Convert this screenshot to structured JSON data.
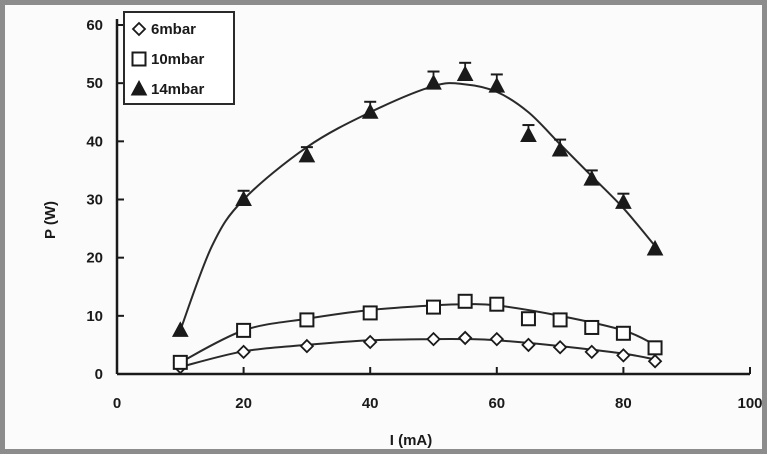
{
  "chart_data": {
    "type": "scatter",
    "xlabel": "I (mA)",
    "ylabel": "P (W)",
    "xlim": [
      0,
      100
    ],
    "ylim": [
      0,
      60
    ],
    "xticks": [
      0,
      20,
      40,
      60,
      80,
      100
    ],
    "yticks": [
      0,
      10,
      20,
      30,
      40,
      50,
      60
    ],
    "grid": false,
    "legend_position": "top-left",
    "series": [
      {
        "name": "6mbar",
        "marker": "diamond",
        "points": [
          [
            10,
            1.2
          ],
          [
            20,
            3.8
          ],
          [
            30,
            4.8
          ],
          [
            40,
            5.5
          ],
          [
            50,
            6.0
          ],
          [
            55,
            6.2
          ],
          [
            60,
            6.0
          ],
          [
            65,
            5.0
          ],
          [
            70,
            4.6
          ],
          [
            75,
            3.8
          ],
          [
            80,
            3.2
          ],
          [
            85,
            2.2
          ]
        ],
        "fit": [
          [
            10,
            1.2
          ],
          [
            20,
            3.9
          ],
          [
            30,
            5.0
          ],
          [
            40,
            5.8
          ],
          [
            50,
            6.0
          ],
          [
            55,
            6.0
          ],
          [
            60,
            5.8
          ],
          [
            70,
            4.8
          ],
          [
            80,
            3.5
          ],
          [
            85,
            2.5
          ]
        ]
      },
      {
        "name": "10mbar",
        "marker": "square",
        "points": [
          [
            10,
            2.0
          ],
          [
            20,
            7.5
          ],
          [
            30,
            9.3
          ],
          [
            40,
            10.5
          ],
          [
            50,
            11.5
          ],
          [
            55,
            12.5
          ],
          [
            60,
            12.0
          ],
          [
            65,
            9.5
          ],
          [
            70,
            9.3
          ],
          [
            75,
            8.0
          ],
          [
            80,
            7.0
          ],
          [
            85,
            4.5
          ]
        ],
        "fit": [
          [
            10,
            2.0
          ],
          [
            20,
            7.5
          ],
          [
            30,
            9.5
          ],
          [
            40,
            11.0
          ],
          [
            50,
            11.8
          ],
          [
            55,
            12.0
          ],
          [
            60,
            11.8
          ],
          [
            70,
            10.0
          ],
          [
            80,
            7.5
          ],
          [
            85,
            5.0
          ]
        ]
      },
      {
        "name": "14mbar",
        "marker": "triangle",
        "points": [
          [
            10,
            7.5
          ],
          [
            20,
            30.0
          ],
          [
            30,
            37.5
          ],
          [
            40,
            45.0
          ],
          [
            50,
            50.0
          ],
          [
            55,
            51.5
          ],
          [
            60,
            49.5
          ],
          [
            65,
            41.0
          ],
          [
            70,
            38.5
          ],
          [
            75,
            33.5
          ],
          [
            80,
            29.5
          ],
          [
            85,
            21.5
          ]
        ],
        "error": [
          0,
          1.5,
          1.5,
          1.8,
          2.0,
          2.0,
          2.0,
          1.8,
          1.8,
          1.5,
          1.5,
          0
        ],
        "fit": [
          [
            10,
            7.5
          ],
          [
            15,
            22.0
          ],
          [
            20,
            30.0
          ],
          [
            30,
            39.0
          ],
          [
            40,
            45.0
          ],
          [
            50,
            49.5
          ],
          [
            55,
            49.8
          ],
          [
            60,
            48.5
          ],
          [
            65,
            45.0
          ],
          [
            70,
            39.5
          ],
          [
            75,
            34.0
          ],
          [
            80,
            28.5
          ],
          [
            85,
            22.0
          ]
        ]
      }
    ]
  }
}
